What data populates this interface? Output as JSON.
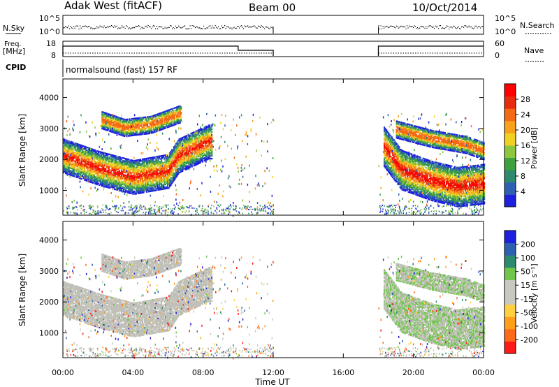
{
  "header": {
    "station": "Adak West (fitACF)",
    "beam": "Beam 00",
    "date": "10/Oct/2014"
  },
  "top_panels": {
    "nsky_label": "N.Sky",
    "nsky_ticks": [
      "10^5",
      "10^0"
    ],
    "nsearch_label": "N.Search",
    "nsearch_ticks": [
      "10^5",
      "10^0"
    ],
    "freq_label_1": "Freq.",
    "freq_label_2": "[MHz]",
    "freq_ticks": [
      "18",
      "8"
    ],
    "nave_label": "Nave",
    "nave_ticks": [
      "60",
      "0"
    ],
    "cpid_label": "CPID",
    "cpid_text": "normalsound (fast) 157 RF"
  },
  "colors": {
    "power_scale": [
      "#1f1fe0",
      "#2f5fb0",
      "#2e8a6e",
      "#3fa040",
      "#8dc63f",
      "#f0d020",
      "#f7a21a",
      "#f46a14",
      "#e82a0e",
      "#ff0000"
    ],
    "velocity_scale": [
      "#ff1a1a",
      "#ff6a1a",
      "#ff9f1a",
      "#ffd040",
      "#c8c8c0",
      "#c8c8c0",
      "#6fc64a",
      "#2e8a6e",
      "#2f5fb0",
      "#1f1fe0"
    ],
    "ground_scatter": "#c0c0b8"
  },
  "chart_data": [
    {
      "type": "heatmap",
      "name": "power-panel",
      "ylabel": "Slant Range [km]",
      "yticks": [
        "4000",
        "3000",
        "2000",
        "1000"
      ],
      "ylim": [
        200,
        4600
      ],
      "xlim_hours": [
        0,
        24
      ],
      "colorbar_label": "Power [dB]",
      "colorbar_ticks": [
        "28",
        "24",
        "20",
        "16",
        "12",
        "8",
        "4"
      ],
      "colorbar_range": [
        0,
        32
      ],
      "data_windows_ut": [
        [
          0,
          12
        ],
        [
          18,
          24
        ]
      ],
      "echo_bands": [
        {
          "start_h": 0.0,
          "end_h": 8.5,
          "ranges_km": [
            [
              0,
              2150
            ],
            [
              2,
              1750
            ],
            [
              4,
              1450
            ],
            [
              6,
              1650
            ],
            [
              6.6,
              2150
            ],
            [
              8.3,
              2600
            ]
          ]
        },
        {
          "start_h": 2.2,
          "end_h": 6.7,
          "ranges_km": [
            [
              2.2,
              3300
            ],
            [
              3.5,
              3050
            ],
            [
              5,
              3150
            ],
            [
              6.7,
              3500
            ]
          ]
        },
        {
          "start_h": 18.3,
          "end_h": 24.0,
          "ranges_km": [
            [
              18.3,
              2450
            ],
            [
              19.3,
              1700
            ],
            [
              21,
              1350
            ],
            [
              22.5,
              1150
            ],
            [
              24,
              1250
            ]
          ]
        },
        {
          "start_h": 19.0,
          "end_h": 24.0,
          "ranges_km": [
            [
              19,
              3000
            ],
            [
              21,
              2700
            ],
            [
              23,
              2500
            ],
            [
              24,
              2300
            ]
          ]
        }
      ]
    },
    {
      "type": "heatmap",
      "name": "velocity-panel",
      "ylabel": "Slant Range [km]",
      "yticks": [
        "4000",
        "3000",
        "2000",
        "1000"
      ],
      "ylim": [
        200,
        4600
      ],
      "xlim_hours": [
        0,
        24
      ],
      "colorbar_label": "Velocity [m s⁻¹]",
      "colorbar_ticks": [
        "200",
        "100",
        "50",
        "15",
        "-15",
        "-50",
        "-100",
        "-200"
      ],
      "xticks": [
        "00:00",
        "04:00",
        "08:00",
        "12:00",
        "16:00",
        "20:00",
        "00:00"
      ],
      "xlabel": "Time UT"
    }
  ]
}
